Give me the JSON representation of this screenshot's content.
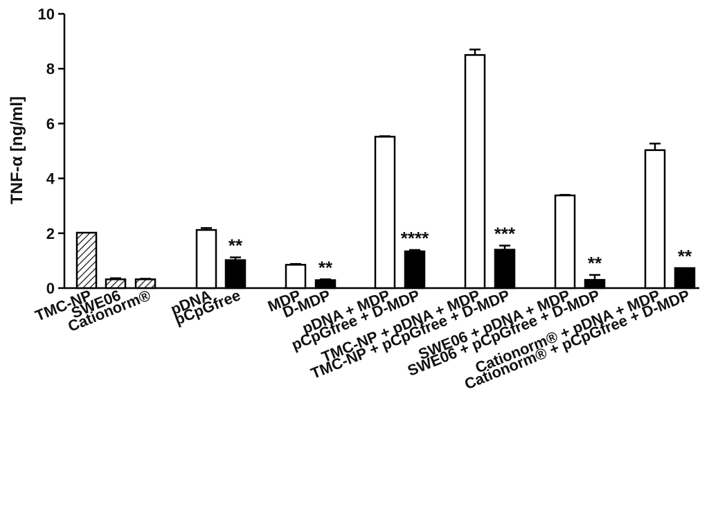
{
  "chart_data": {
    "type": "bar",
    "title": "",
    "xlabel": "",
    "ylabel": "TNF-α [ng/ml]",
    "ylim": [
      0,
      10
    ],
    "yticks": [
      "0",
      "2",
      "4",
      "6",
      "8",
      "10"
    ],
    "grid": false,
    "legend": "none",
    "colors": {
      "hatched": "#1a1a1a",
      "open": "#ffffff",
      "solid": "#000000",
      "outline": "#000000"
    },
    "bars": [
      {
        "category": "TMC-NP",
        "value": 2.02,
        "error": 0.0,
        "fill": "hatched",
        "significance": ""
      },
      {
        "category": "SWE06",
        "value": 0.32,
        "error": 0.04,
        "fill": "hatched",
        "significance": ""
      },
      {
        "category": "Cationorm®",
        "value": 0.32,
        "error": 0.02,
        "fill": "hatched",
        "significance": ""
      },
      {
        "category": "pDNA",
        "value": 2.12,
        "error": 0.07,
        "fill": "open",
        "significance": ""
      },
      {
        "category": "pCpGfree",
        "value": 1.02,
        "error": 0.1,
        "fill": "solid",
        "significance": "**"
      },
      {
        "category": "MDP",
        "value": 0.85,
        "error": 0.03,
        "fill": "open",
        "significance": ""
      },
      {
        "category": "D-MDP",
        "value": 0.29,
        "error": 0.03,
        "fill": "solid",
        "significance": "**"
      },
      {
        "category": "pDNA + MDP",
        "value": 5.52,
        "error": 0.02,
        "fill": "open",
        "significance": ""
      },
      {
        "category": "pCpGfree + D-MDP",
        "value": 1.34,
        "error": 0.05,
        "fill": "solid",
        "significance": "****"
      },
      {
        "category": "TMC-NP + pDNA + MDP",
        "value": 8.5,
        "error": 0.2,
        "fill": "open",
        "significance": ""
      },
      {
        "category": "TMC-NP + pCpGfree + D-MDP",
        "value": 1.4,
        "error": 0.15,
        "fill": "solid",
        "significance": "***"
      },
      {
        "category": "SWE06 + pDNA + MDP",
        "value": 3.38,
        "error": 0.02,
        "fill": "open",
        "significance": ""
      },
      {
        "category": "SWE06 + pCpGfree + D-MDP",
        "value": 0.3,
        "error": 0.18,
        "fill": "solid",
        "significance": "**"
      },
      {
        "category": "Cationorm® + pDNA + MDP",
        "value": 5.03,
        "error": 0.24,
        "fill": "open",
        "significance": ""
      },
      {
        "category": "Cationorm® + pCpGfree + D-MDP",
        "value": 0.73,
        "error": 0.0,
        "fill": "solid",
        "significance": "**"
      }
    ]
  }
}
